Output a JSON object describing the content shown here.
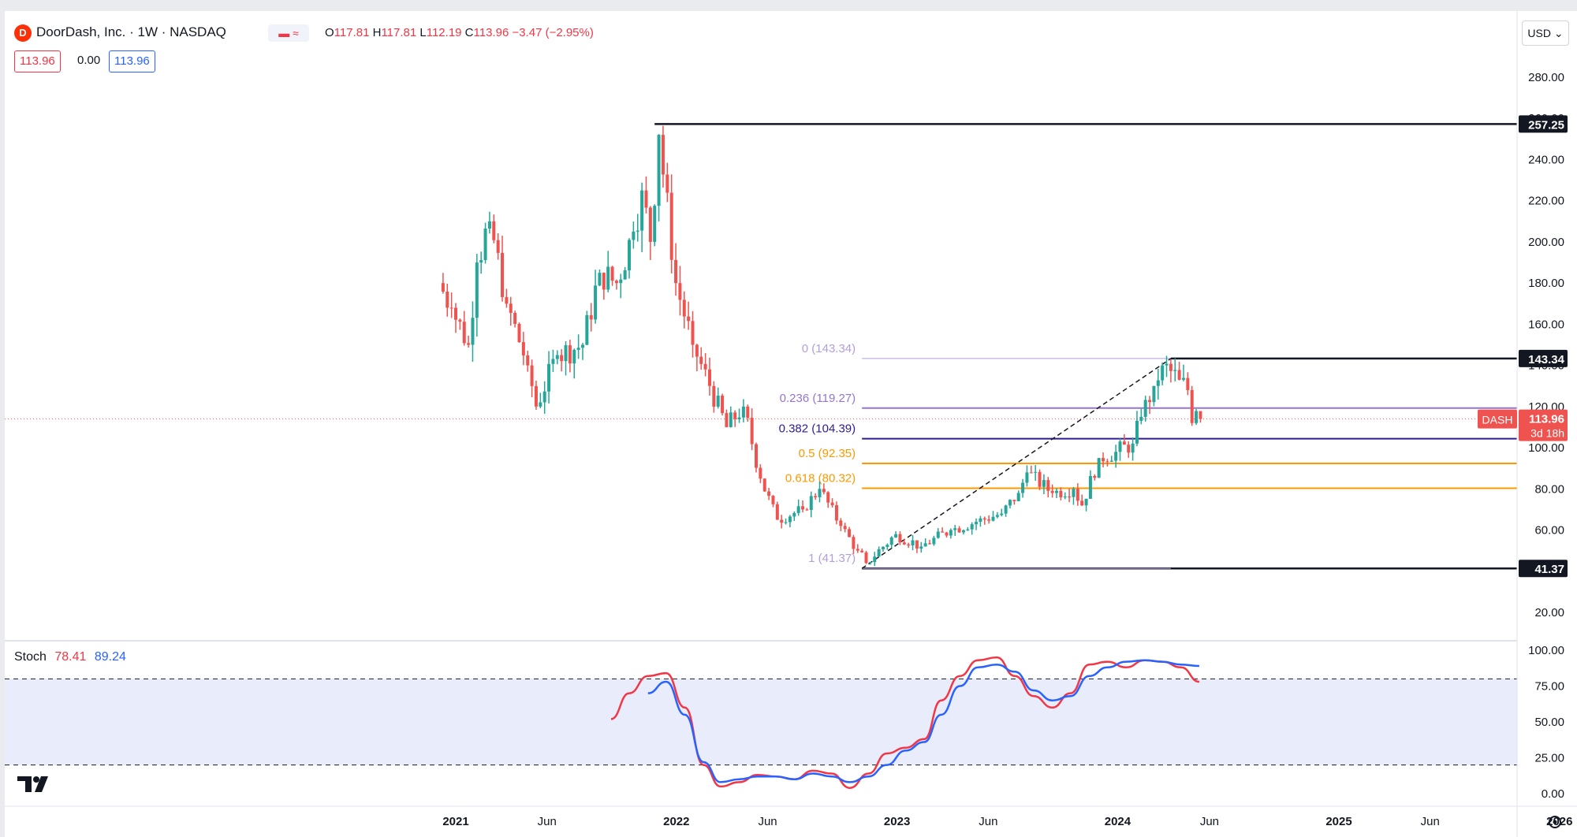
{
  "header": {
    "symbol_title": "DoorDash, Inc. · 1W · NASDAQ",
    "ohlc": {
      "o_label": "O",
      "o": "117.81",
      "h_label": "H",
      "h": "117.81",
      "l_label": "L",
      "l": "112.19",
      "c_label": "C",
      "c": "113.96",
      "change": "−3.47 (−2.95%)"
    },
    "values": {
      "v1": "113.96",
      "v2": "0.00",
      "v3": "113.96"
    },
    "currency": "USD"
  },
  "colors": {
    "up": "#26a69a",
    "down": "#ef5350",
    "fib_purple_light": "#b39ddb",
    "fib_purple": "#9575cd",
    "fib_dark": "#311b92",
    "fib_orange": "#ff9800",
    "stoch_k": "#f23645",
    "stoch_d": "#2962ff",
    "band": "#e8ecfb"
  },
  "price_axis": {
    "ticks": [
      "280.00",
      "260.00",
      "240.00",
      "220.00",
      "200.00",
      "180.00",
      "160.00",
      "140.00",
      "120.00",
      "100.00",
      "80.00",
      "60.00",
      "40.00",
      "20.00"
    ]
  },
  "time_axis": {
    "labels": [
      "2021",
      "Jun",
      "2022",
      "Jun",
      "2023",
      "Jun",
      "2024",
      "Jun",
      "2025",
      "Jun",
      "2026"
    ]
  },
  "level_labels": {
    "top": "257.25",
    "swing_high": "143.34",
    "swing_low": "41.37",
    "ticker": "DASH",
    "last": "113.96",
    "countdown": "3d 18h"
  },
  "fib_labels": [
    {
      "text": "0 (143.34)",
      "value": 143.34
    },
    {
      "text": "0.236 (119.27)",
      "value": 119.27
    },
    {
      "text": "0.382 (104.39)",
      "value": 104.39
    },
    {
      "text": "0.5 (92.35)",
      "value": 92.35
    },
    {
      "text": "0.618 (80.32)",
      "value": 80.32
    },
    {
      "text": "1 (41.37)",
      "value": 41.37
    }
  ],
  "stoch": {
    "label": "Stoch",
    "k": "78.41",
    "d": "89.24",
    "ticks": [
      "100.00",
      "75.00",
      "50.00",
      "25.00",
      "0.00"
    ]
  },
  "logo": "tradingview-logo",
  "chart_data": [
    {
      "type": "candlestick",
      "title": "DoorDash, Inc. · 1W · NASDAQ",
      "ylim": [
        0,
        290
      ],
      "x_range": [
        "2020-12",
        "2026-01"
      ],
      "series": [
        {
          "name": "DASH",
          "points": [
            {
              "t": "2020-12-11",
              "o": 180,
              "c": 168
            },
            {
              "t": "2021-01-01",
              "o": 168,
              "c": 150
            },
            {
              "t": "2021-01-29",
              "o": 150,
              "c": 190
            },
            {
              "t": "2021-02-12",
              "o": 190,
              "c": 210
            },
            {
              "t": "2021-03-05",
              "o": 210,
              "c": 170
            },
            {
              "t": "2021-04-02",
              "o": 170,
              "c": 140
            },
            {
              "t": "2021-05-07",
              "o": 140,
              "c": 120
            },
            {
              "t": "2021-05-21",
              "o": 120,
              "c": 145
            },
            {
              "t": "2021-06-25",
              "o": 145,
              "c": 150
            },
            {
              "t": "2021-08-06",
              "o": 150,
              "c": 185
            },
            {
              "t": "2021-09-03",
              "o": 185,
              "c": 180
            },
            {
              "t": "2021-10-01",
              "o": 180,
              "c": 205
            },
            {
              "t": "2021-10-29",
              "o": 205,
              "c": 225
            },
            {
              "t": "2021-11-12",
              "o": 225,
              "c": 200
            },
            {
              "t": "2021-11-26",
              "o": 200,
              "c": 252
            },
            {
              "t": "2021-12-10",
              "o": 252,
              "c": 180
            },
            {
              "t": "2022-01-07",
              "o": 180,
              "c": 150
            },
            {
              "t": "2022-02-04",
              "o": 150,
              "c": 130
            },
            {
              "t": "2022-03-04",
              "o": 130,
              "c": 110
            },
            {
              "t": "2022-04-01",
              "o": 110,
              "c": 120
            },
            {
              "t": "2022-04-29",
              "o": 120,
              "c": 85
            },
            {
              "t": "2022-05-27",
              "o": 85,
              "c": 65
            },
            {
              "t": "2022-06-24",
              "o": 65,
              "c": 70
            },
            {
              "t": "2022-08-05",
              "o": 70,
              "c": 80
            },
            {
              "t": "2022-09-02",
              "o": 80,
              "c": 62
            },
            {
              "t": "2022-10-07",
              "o": 62,
              "c": 50
            },
            {
              "t": "2022-11-04",
              "o": 50,
              "c": 44
            },
            {
              "t": "2022-11-18",
              "o": 44,
              "c": 58
            },
            {
              "t": "2023-01-06",
              "o": 58,
              "c": 52
            },
            {
              "t": "2023-02-17",
              "o": 52,
              "c": 60
            },
            {
              "t": "2023-04-07",
              "o": 60,
              "c": 64
            },
            {
              "t": "2023-05-19",
              "o": 64,
              "c": 68
            },
            {
              "t": "2023-06-30",
              "o": 68,
              "c": 78
            },
            {
              "t": "2023-07-28",
              "o": 78,
              "c": 88
            },
            {
              "t": "2023-08-11",
              "o": 88,
              "c": 78
            },
            {
              "t": "2023-09-22",
              "o": 78,
              "c": 80
            },
            {
              "t": "2023-10-27",
              "o": 80,
              "c": 72
            },
            {
              "t": "2023-11-10",
              "o": 72,
              "c": 95
            },
            {
              "t": "2023-12-08",
              "o": 95,
              "c": 98
            },
            {
              "t": "2024-01-05",
              "o": 98,
              "c": 102
            },
            {
              "t": "2024-02-02",
              "o": 102,
              "c": 115
            },
            {
              "t": "2024-02-16",
              "o": 115,
              "c": 130
            },
            {
              "t": "2024-03-08",
              "o": 130,
              "c": 140
            },
            {
              "t": "2024-03-22",
              "o": 140,
              "c": 133
            },
            {
              "t": "2024-04-19",
              "o": 133,
              "c": 128
            },
            {
              "t": "2024-05-03",
              "o": 128,
              "c": 112
            },
            {
              "t": "2024-05-10",
              "o": 112,
              "c": 117
            },
            {
              "t": "2024-05-17",
              "o": 117.81,
              "c": 113.96
            }
          ]
        }
      ],
      "horizontal_levels": [
        257.25,
        143.34,
        41.37
      ],
      "fibonacci": [
        {
          "ratio": 0,
          "value": 143.34
        },
        {
          "ratio": 0.236,
          "value": 119.27
        },
        {
          "ratio": 0.382,
          "value": 104.39
        },
        {
          "ratio": 0.5,
          "value": 92.35
        },
        {
          "ratio": 0.618,
          "value": 80.32
        },
        {
          "ratio": 1,
          "value": 41.37
        }
      ],
      "trendline": {
        "from": {
          "t": "2022-11-04",
          "v": 41.37
        },
        "to": {
          "t": "2024-03-29",
          "v": 143.34
        }
      },
      "last_price": 113.96
    },
    {
      "type": "line",
      "title": "Stoch",
      "ylim": [
        0,
        100
      ],
      "overbought": 80,
      "oversold": 20,
      "series": [
        {
          "name": "%K",
          "x": [
            "2021-09",
            "2021-10",
            "2021-11",
            "2021-12",
            "2022-01",
            "2022-02",
            "2022-03",
            "2022-04",
            "2022-05",
            "2022-06",
            "2022-07",
            "2022-08",
            "2022-09",
            "2022-10",
            "2022-11",
            "2022-12",
            "2023-01",
            "2023-02",
            "2023-03",
            "2023-04",
            "2023-05",
            "2023-06",
            "2023-07",
            "2023-08",
            "2023-09",
            "2023-10",
            "2023-11",
            "2023-12",
            "2024-01",
            "2024-02",
            "2024-03",
            "2024-04",
            "2024-05"
          ],
          "values": [
            52,
            70,
            82,
            84,
            60,
            20,
            5,
            8,
            13,
            12,
            10,
            16,
            14,
            4,
            14,
            28,
            32,
            38,
            65,
            82,
            93,
            95,
            82,
            68,
            60,
            70,
            90,
            92,
            88,
            93,
            92,
            88,
            78
          ]
        },
        {
          "name": "%D",
          "x": [
            "2021-11",
            "2021-12",
            "2022-01",
            "2022-02",
            "2022-03",
            "2022-04",
            "2022-05",
            "2022-06",
            "2022-07",
            "2022-08",
            "2022-09",
            "2022-10",
            "2022-11",
            "2022-12",
            "2023-01",
            "2023-02",
            "2023-03",
            "2023-04",
            "2023-05",
            "2023-06",
            "2023-07",
            "2023-08",
            "2023-09",
            "2023-10",
            "2023-11",
            "2023-12",
            "2024-01",
            "2024-02",
            "2024-03",
            "2024-04",
            "2024-05"
          ],
          "values": [
            70,
            78,
            55,
            22,
            8,
            10,
            12,
            12,
            10,
            14,
            12,
            8,
            12,
            20,
            30,
            36,
            55,
            75,
            88,
            90,
            85,
            72,
            65,
            68,
            82,
            88,
            92,
            93,
            92,
            90,
            89
          ]
        }
      ]
    }
  ]
}
